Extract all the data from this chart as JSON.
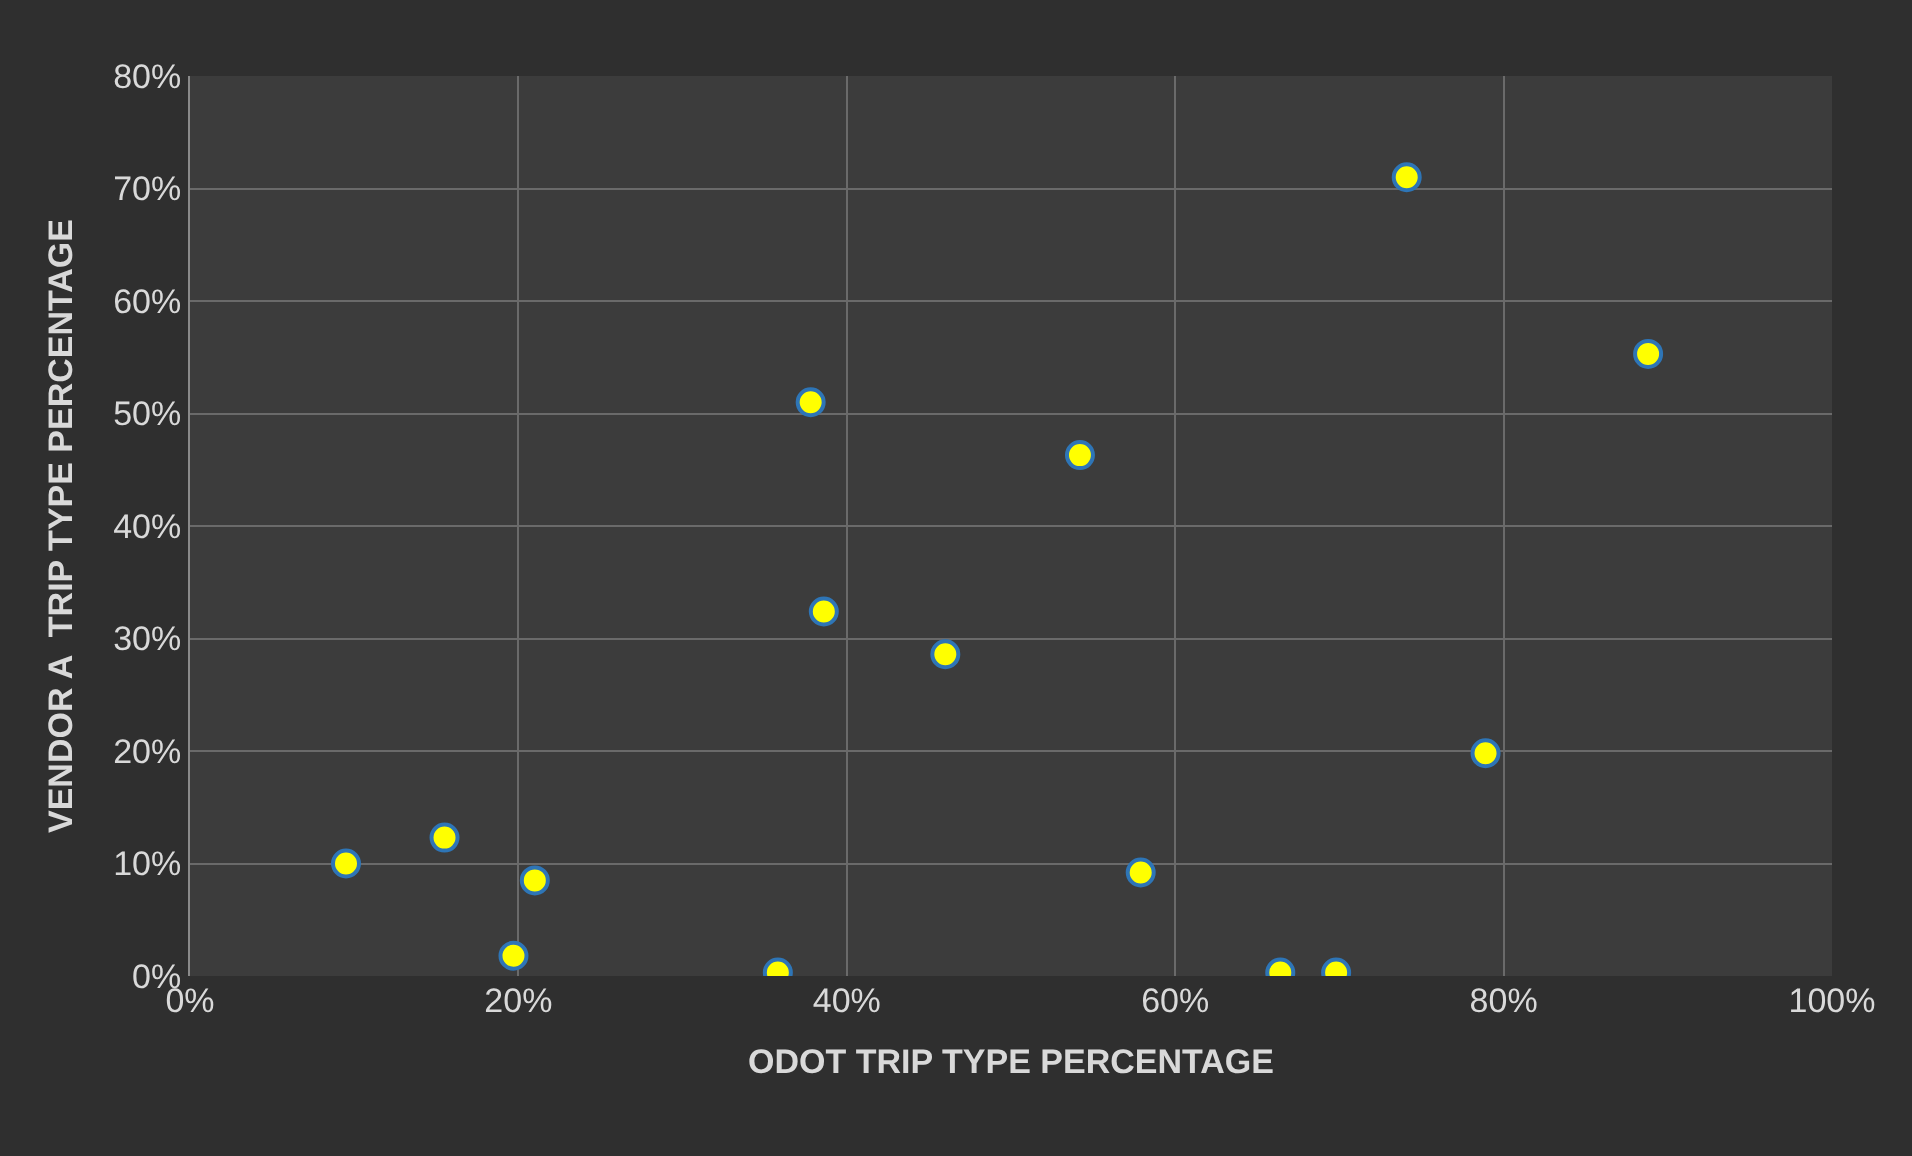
{
  "chart_data": {
    "type": "scatter",
    "xlabel": "ODOT TRIP TYPE PERCENTAGE",
    "ylabel": "VENDOR A  TRIP TYPE PERCENTAGE",
    "series": [
      {
        "color": "#ffff00",
        "x": [
          9.5,
          15.5,
          19.7,
          21,
          35.8,
          37.8,
          38.6,
          46,
          54.2,
          57.9,
          66.4,
          69.8,
          74.1,
          78.9,
          88.8
        ],
        "values": [
          10,
          12.3,
          1.8,
          8.5,
          0.3,
          51,
          32.4,
          28.6,
          46.3,
          9.2,
          0.3,
          0.3,
          71,
          19.8,
          55.3
        ]
      }
    ],
    "xlim": [
      0,
      100
    ],
    "ylim": [
      0,
      80
    ],
    "xticks": [
      {
        "value": 0,
        "label": "0%"
      },
      {
        "value": 20,
        "label": "20%"
      },
      {
        "value": 40,
        "label": "40%"
      },
      {
        "value": 60,
        "label": "60%"
      },
      {
        "value": 80,
        "label": "80%"
      },
      {
        "value": 100,
        "label": "100%"
      }
    ],
    "yticks": [
      {
        "value": 0,
        "label": "0%"
      },
      {
        "value": 10,
        "label": "10%"
      },
      {
        "value": 20,
        "label": "20%"
      },
      {
        "value": 30,
        "label": "30%"
      },
      {
        "value": 40,
        "label": "40%"
      },
      {
        "value": 50,
        "label": "50%"
      },
      {
        "value": 60,
        "label": "60%"
      },
      {
        "value": 70,
        "label": "70%"
      },
      {
        "value": 80,
        "label": "80%"
      }
    ],
    "grid": true,
    "marker": "circle",
    "legend": false
  }
}
